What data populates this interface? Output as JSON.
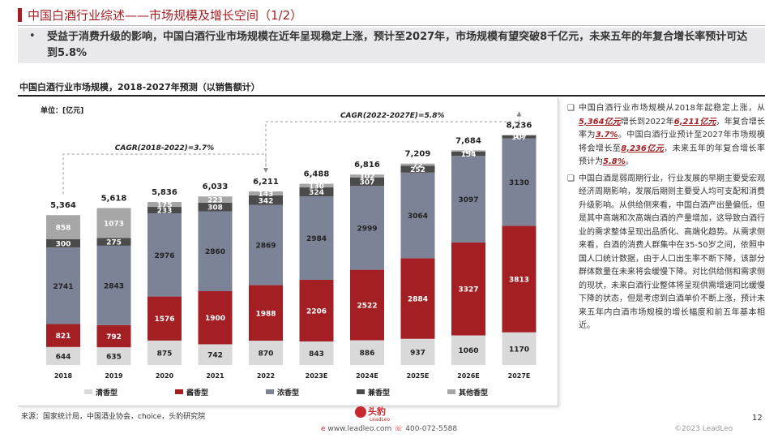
{
  "page": {
    "title": "中国白酒行业综述——市场规模及增长空间（1/2）",
    "summary_bullet": "•",
    "summary": "受益于消费升级的影响，中国白酒行业市场规模在近年呈现稳定上涨，预计至2027年，市场规模有望突破8千亿元，未来五年的年复合增长率预计可达到5.8%",
    "source": "来源：国家统计局，中国酒业协会，choice，头豹研究院",
    "page_number": "12",
    "copyright": "©2023 LeadLeo",
    "logo_cn": "头豹",
    "logo_en": "LeadLeo",
    "website": "www.leadleo.com",
    "phone": "400-072-5588"
  },
  "side_notes": [
    {
      "parts": [
        {
          "t": "中国白酒行业市场规模从2018年起稳定上涨，从",
          "hl": false
        },
        {
          "t": "5,364亿元",
          "hl": true
        },
        {
          "t": "增长到2022年",
          "hl": false
        },
        {
          "t": "6,211亿元",
          "hl": true
        },
        {
          "t": "，年复合增长率为",
          "hl": false
        },
        {
          "t": "3.7%",
          "hl": true
        },
        {
          "t": "。中国白酒行业预计至2027年市场规模将会增长至",
          "hl": false
        },
        {
          "t": "8,236亿元",
          "hl": true
        },
        {
          "t": "，未来五年的年复合增长率预计为",
          "hl": false
        },
        {
          "t": "5.8%",
          "hl": true
        },
        {
          "t": "。",
          "hl": false
        }
      ]
    },
    {
      "parts": [
        {
          "t": "中国白酒是弱周期行业，行业发展的早期主要受宏观经济周期影响，发展后期则主要受人均可支配和消费升级影响。从供给侧来看，中国白酒产出量偏低，但是其中高端和次高端白酒的产量增加，这导致白酒行业的需求整体呈现出品质化、高端化趋势。从需求侧来看，白酒的消费人群集中在35-50岁之间，依照中国人口统计数据，由于人口出生率不断下降，该部分群体数量在未来将会缓慢下降。对比供给侧和需求侧的现状，未来白酒行业整体将呈现供需增速同比缓慢下降的状态，但是考虑到白酒单价不断上涨，预计未来五年内白酒市场规模的增长幅度和前五年基本相近。",
          "hl": false
        }
      ]
    }
  ],
  "chart_data": {
    "type": "bar",
    "stacked": true,
    "title": "中国白酒行业市场规模，2018-2027年预测（以销售额计）",
    "unit_label": "单位：[亿元]",
    "categories": [
      "2018",
      "2019",
      "2020",
      "2021",
      "2022",
      "2023E",
      "2024E",
      "2025E",
      "2026E",
      "2027E"
    ],
    "series": [
      {
        "name": "清香型",
        "color": "#d9d9d9",
        "label_color": "#222222",
        "values": [
          644,
          635,
          875,
          742,
          870,
          843,
          886,
          937,
          1060,
          1170
        ]
      },
      {
        "name": "酱香型",
        "color": "#a31f23",
        "label_color": "#ffffff",
        "values": [
          821,
          792,
          1576,
          1900,
          1988,
          2206,
          2522,
          2884,
          3327,
          3813
        ]
      },
      {
        "name": "浓香型",
        "color": "#7c8397",
        "label_color": "#222222",
        "values": [
          2741,
          2843,
          2976,
          2860,
          2869,
          2984,
          2999,
          3064,
          3097,
          3130
        ]
      },
      {
        "name": "兼香型",
        "color": "#4b4b4b",
        "label_color": "#ffffff",
        "values": [
          300,
          275,
          233,
          308,
          342,
          324,
          307,
          252,
          154,
          107
        ]
      },
      {
        "name": "其他香型",
        "color": "#a6a6a6",
        "label_color": "#ffffff",
        "values": [
          858,
          1073,
          175,
          223,
          143,
          130,
          102,
          72,
          46,
          16
        ]
      }
    ],
    "totals": [
      "5,364",
      "5,618",
      "5,836",
      "6,033",
      "6,211",
      "6,488",
      "6,816",
      "7,209",
      "7,684",
      "8,236"
    ],
    "ylim": [
      0,
      9000
    ],
    "annotations": [
      {
        "text": "CAGR(2018-2022)=3.7%",
        "from": "2018",
        "to": "2022"
      },
      {
        "text": "CAGR(2022-2027E)=5.8%",
        "from": "2022",
        "to": "2027E"
      }
    ],
    "legend_position": "bottom"
  }
}
